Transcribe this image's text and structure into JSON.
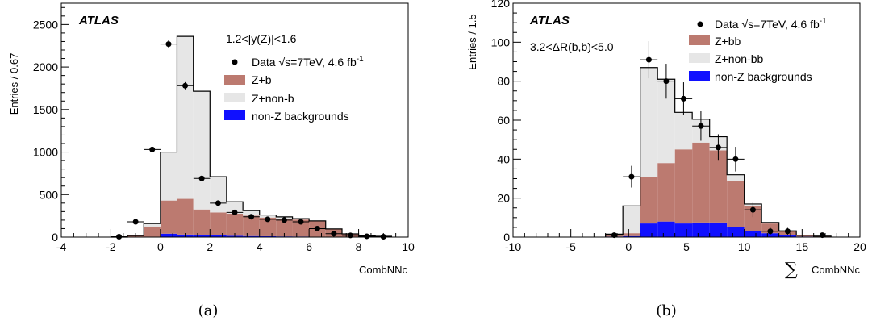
{
  "colors": {
    "z_signal": "#bc7a70",
    "z_bkg": "#e6e6e6",
    "nonz": "#1010ff",
    "outline": "#000000",
    "data": "#000000"
  },
  "panels": [
    {
      "caption": "(a)",
      "atlas_label": "ATLAS",
      "cut_label": "1.2<|y(Z)|<1.6",
      "data_legend": "Data √s=7TeV, 4.6 fb",
      "data_legend_sup": "-1",
      "legend": [
        "Z+b",
        "Z+non-b",
        "non-Z backgrounds"
      ],
      "ylabel": "Entries / 0.67",
      "xlabel": "CombNNc",
      "xticks": [
        "-4",
        "-2",
        "0",
        "2",
        "4",
        "6",
        "8",
        "10"
      ],
      "yticks": [
        "0",
        "500",
        "1000",
        "1500",
        "2000",
        "2500"
      ]
    },
    {
      "caption": "(b)",
      "atlas_label": "ATLAS",
      "cut_label": "3.2<ΔR(b,b)<5.0",
      "data_legend": "Data √s=7TeV, 4.6 fb",
      "data_legend_sup": "-1",
      "legend": [
        "Z+bb",
        "Z+non-bb",
        "non-Z backgrounds"
      ],
      "ylabel": "Entries / 1.5",
      "xlabel_sum": "∑",
      "xlabel": "CombNNc",
      "xticks": [
        "-10",
        "-5",
        "0",
        "5",
        "10",
        "15",
        "20"
      ],
      "yticks": [
        "0",
        "20",
        "40",
        "60",
        "80",
        "100",
        "120"
      ]
    }
  ],
  "chart_data": [
    {
      "type": "histogram",
      "xlabel": "CombNNc",
      "ylabel": "Entries / 0.67",
      "xlim": [
        -4,
        10
      ],
      "ylim": [
        0,
        2750
      ],
      "bin_edges": [
        -2.0,
        -1.33,
        -0.67,
        0.0,
        0.67,
        1.33,
        2.0,
        2.67,
        3.33,
        4.0,
        4.67,
        5.33,
        6.0,
        6.67,
        7.33,
        8.0,
        8.67,
        9.33
      ],
      "series": [
        {
          "name": "non-Z backgrounds",
          "values": [
            0,
            2,
            5,
            40,
            30,
            25,
            20,
            15,
            12,
            10,
            8,
            7,
            5,
            3,
            2,
            1,
            1
          ]
        },
        {
          "name": "Z+b",
          "values": [
            0,
            15,
            120,
            390,
            420,
            300,
            270,
            260,
            240,
            220,
            210,
            200,
            180,
            90,
            35,
            15,
            8
          ]
        },
        {
          "name": "Z+non-b",
          "values": [
            0,
            0,
            35,
            570,
            1910,
            1390,
            420,
            140,
            60,
            30,
            20,
            10,
            6,
            3,
            1,
            1,
            1
          ]
        },
        {
          "name": "Data √s=7TeV, 4.6 fb-1",
          "x": [
            -1.67,
            -1.0,
            -0.33,
            0.33,
            1.0,
            1.67,
            2.33,
            3.0,
            3.67,
            4.33,
            5.0,
            5.67,
            6.33,
            7.0,
            7.67,
            8.33,
            9.0
          ],
          "values": [
            5,
            180,
            1030,
            2270,
            1780,
            690,
            400,
            290,
            240,
            210,
            200,
            180,
            100,
            40,
            20,
            10,
            5
          ]
        }
      ]
    },
    {
      "type": "histogram",
      "xlabel": "∑CombNNc",
      "ylabel": "Entries / 1.5",
      "xlim": [
        -10,
        20
      ],
      "ylim": [
        0,
        120
      ],
      "bin_edges": [
        -2.0,
        -0.5,
        1.0,
        2.5,
        4.0,
        5.5,
        7.0,
        8.5,
        10.0,
        11.5,
        13.0,
        14.5,
        16.0,
        17.5
      ],
      "series": [
        {
          "name": "non-Z backgrounds",
          "values": [
            0.3,
            0.5,
            7,
            8,
            7,
            7.5,
            7.5,
            5,
            3,
            2,
            1,
            0.3,
            0.2
          ]
        },
        {
          "name": "Z+bb",
          "values": [
            0.5,
            1.5,
            24,
            30,
            38,
            41,
            37,
            24,
            13,
            5,
            2,
            0.5,
            0.2
          ]
        },
        {
          "name": "Z+non-bb",
          "values": [
            0.7,
            14,
            56,
            43,
            19,
            12,
            7,
            3,
            1,
            0.5,
            0.2,
            0.1,
            0.1
          ]
        },
        {
          "name": "Data √s=7TeV, 4.6 fb-1",
          "x": [
            -1.25,
            0.25,
            1.75,
            3.25,
            4.75,
            6.25,
            7.75,
            9.25,
            10.75,
            12.25,
            13.75,
            16.75
          ],
          "values": [
            1,
            31,
            91,
            80,
            71,
            57,
            46,
            40,
            14,
            3,
            3,
            1
          ]
        }
      ]
    }
  ]
}
